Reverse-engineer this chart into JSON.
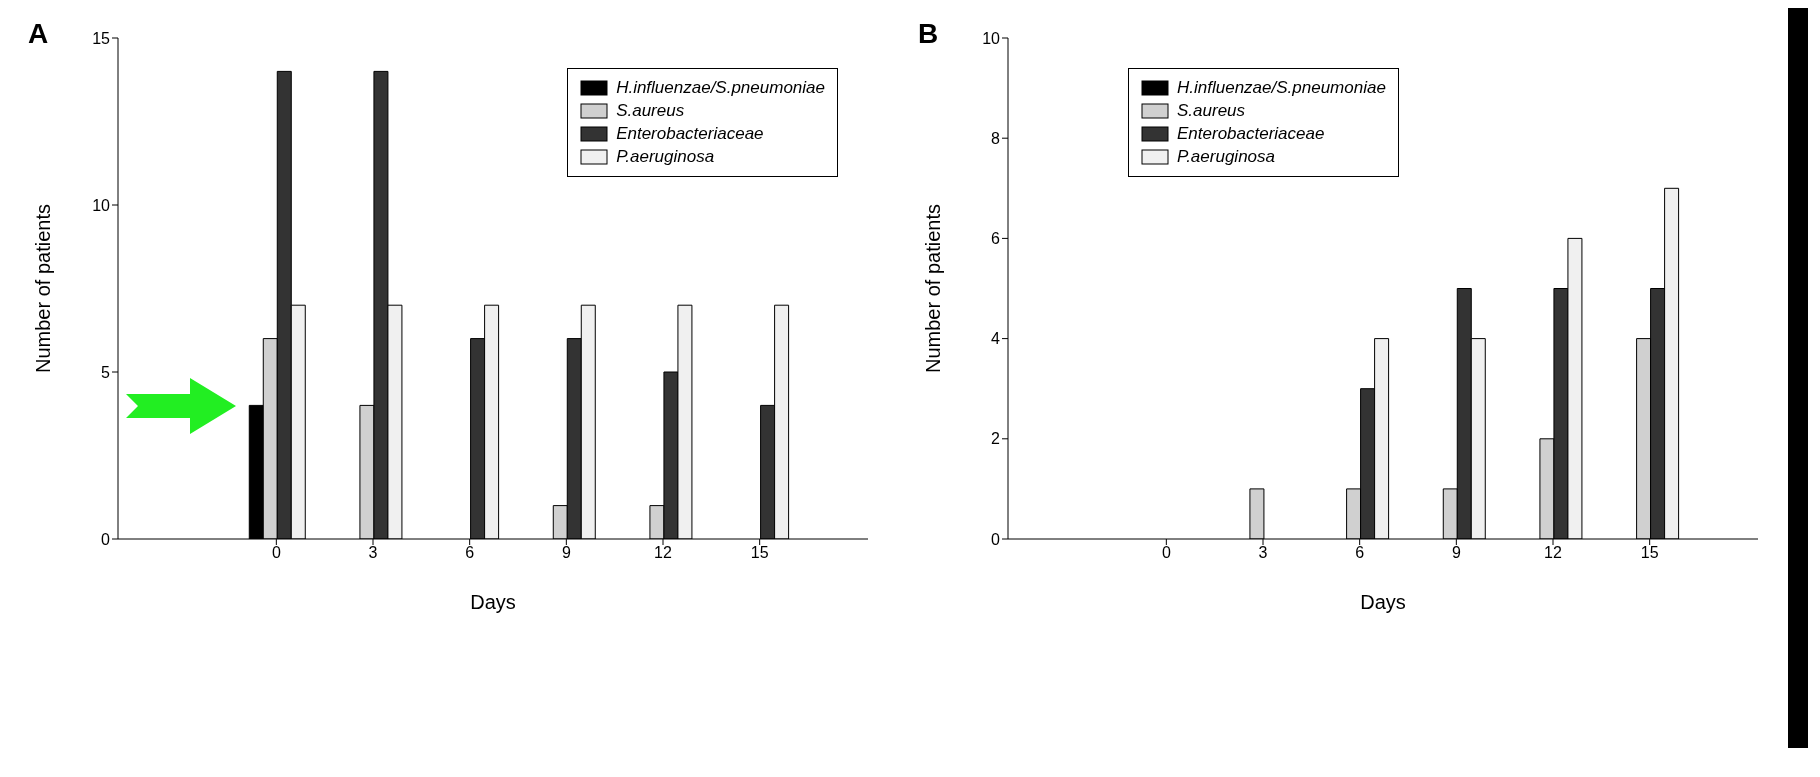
{
  "chart_data": [
    {
      "type": "bar",
      "title": "A",
      "xlabel": "Days",
      "ylabel": "Number of patients",
      "categories": [
        "0",
        "3",
        "6",
        "9",
        "12",
        "15"
      ],
      "ylim": [
        0,
        15
      ],
      "yticks": [
        0,
        5,
        10,
        15
      ],
      "legend": "top right",
      "series": [
        {
          "name": "H.influenzae/S.pneumoniae",
          "color": "#000000",
          "values": [
            4,
            0,
            0,
            0,
            0,
            0
          ]
        },
        {
          "name": "S.aureus",
          "color": "#d0d0d0",
          "values": [
            6,
            4,
            0,
            1,
            1,
            0
          ]
        },
        {
          "name": "Enterobacteriaceae",
          "color": "#333333",
          "values": [
            14,
            14,
            6,
            6,
            5,
            4
          ]
        },
        {
          "name": "P.aeruginosa",
          "color": "#f0f0f0",
          "values": [
            7,
            7,
            7,
            7,
            7,
            7
          ]
        }
      ]
    },
    {
      "type": "bar",
      "title": "B",
      "xlabel": "Days",
      "ylabel": "Number of patients",
      "categories": [
        "0",
        "3",
        "6",
        "9",
        "12",
        "15"
      ],
      "ylim": [
        0,
        10
      ],
      "yticks": [
        0,
        2,
        4,
        6,
        8,
        10
      ],
      "legend": "top left",
      "series": [
        {
          "name": "H.influenzae/S.pneumoniae",
          "color": "#000000",
          "values": [
            0,
            0,
            0,
            0,
            0,
            0
          ]
        },
        {
          "name": "S.aureus",
          "color": "#d0d0d0",
          "values": [
            0,
            1,
            1,
            1,
            2,
            4
          ]
        },
        {
          "name": "Enterobacteriaceae",
          "color": "#333333",
          "values": [
            0,
            0,
            3,
            5,
            5,
            5
          ]
        },
        {
          "name": "P.aeruginosa",
          "color": "#f0f0f0",
          "values": [
            0,
            0,
            4,
            4,
            6,
            7
          ]
        }
      ]
    }
  ]
}
